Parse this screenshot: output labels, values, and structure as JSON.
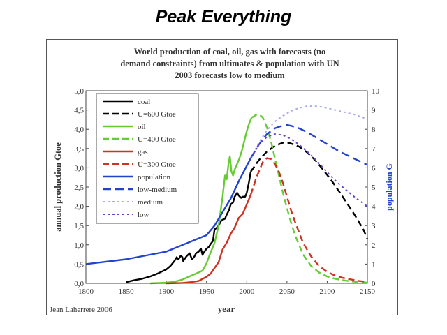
{
  "slide": {
    "title": "Peak Everything"
  },
  "chart_data": {
    "type": "line",
    "title_lines": [
      "World production of coal, oil, gas with forecasts (no",
      "demand constraints) from ultimates & population with UN",
      "2003 forecasts low to medium"
    ],
    "xlabel": "year",
    "ylabel_left": "annual production Gtoe",
    "ylabel_right": "population G",
    "xlim": [
      1800,
      2150
    ],
    "ylim_left": [
      0,
      5
    ],
    "ylim_right": [
      0,
      10
    ],
    "x_ticks": [
      "1800",
      "1850",
      "1900",
      "1950",
      "2000",
      "2050",
      "2100",
      "2150"
    ],
    "y_left_ticks": [
      "0,0",
      "0,5",
      "1,0",
      "1,5",
      "2,0",
      "2,5",
      "3,0",
      "3,5",
      "4,0",
      "4,5",
      "5,0"
    ],
    "y_right_ticks": [
      "0",
      "1",
      "2",
      "3",
      "4",
      "5",
      "6",
      "7",
      "8",
      "9",
      "10"
    ],
    "credit": "Jean Laherrere 2006",
    "legend_position": "top-left",
    "series": [
      {
        "name": "coal",
        "axis": "left",
        "color": "#000000",
        "dash": "solid",
        "x": [
          1850,
          1860,
          1870,
          1880,
          1890,
          1900,
          1905,
          1910,
          1913,
          1915,
          1918,
          1920,
          1921,
          1925,
          1929,
          1932,
          1935,
          1937,
          1940,
          1943,
          1945,
          1946,
          1950,
          1953,
          1955,
          1958,
          1960,
          1963,
          1965,
          1968,
          1970,
          1973,
          1975,
          1978,
          1980,
          1983,
          1985,
          1988,
          1990,
          1993,
          1995,
          1998,
          2000,
          2003,
          2005
        ],
        "y": [
          0.03,
          0.08,
          0.12,
          0.18,
          0.26,
          0.36,
          0.45,
          0.58,
          0.68,
          0.62,
          0.72,
          0.68,
          0.58,
          0.7,
          0.78,
          0.62,
          0.7,
          0.78,
          0.82,
          0.9,
          0.74,
          0.78,
          0.9,
          0.95,
          1.02,
          1.1,
          1.4,
          1.45,
          1.5,
          1.62,
          1.65,
          1.68,
          1.78,
          1.9,
          2.05,
          2.1,
          2.25,
          2.35,
          2.28,
          2.22,
          2.25,
          2.25,
          2.35,
          2.65,
          2.9
        ]
      },
      {
        "name": "U=600 Gtoe",
        "axis": "left",
        "color": "#000000",
        "dash": "dashed",
        "x": [
          2005,
          2015,
          2025,
          2035,
          2045,
          2050,
          2055,
          2065,
          2075,
          2085,
          2095,
          2105,
          2115,
          2125,
          2135,
          2145,
          2150
        ],
        "y": [
          2.9,
          3.2,
          3.42,
          3.57,
          3.65,
          3.66,
          3.63,
          3.55,
          3.4,
          3.2,
          2.95,
          2.68,
          2.38,
          2.07,
          1.75,
          1.4,
          1.15
        ]
      },
      {
        "name": "oil",
        "axis": "left",
        "color": "#66cc33",
        "dash": "solid",
        "x": [
          1880,
          1890,
          1900,
          1910,
          1920,
          1930,
          1940,
          1945,
          1950,
          1955,
          1960,
          1965,
          1970,
          1973,
          1975,
          1977,
          1979,
          1981,
          1983,
          1985,
          1988,
          1991,
          1994,
          1997,
          2000,
          2003,
          2006
        ],
        "y": [
          0.0,
          0.01,
          0.02,
          0.04,
          0.1,
          0.19,
          0.28,
          0.33,
          0.52,
          0.8,
          1.05,
          1.5,
          2.25,
          2.8,
          2.7,
          3.05,
          3.3,
          2.9,
          2.8,
          2.95,
          3.1,
          3.25,
          3.45,
          3.7,
          3.95,
          4.15,
          4.3
        ]
      },
      {
        "name": "U=400 Gtoe",
        "axis": "left",
        "color": "#66cc33",
        "dash": "dashed",
        "x": [
          2006,
          2012,
          2016,
          2020,
          2025,
          2030,
          2035,
          2040,
          2045,
          2050,
          2055,
          2060,
          2070,
          2080,
          2090,
          2100,
          2110,
          2120,
          2130,
          2140,
          2150
        ],
        "y": [
          4.3,
          4.38,
          4.38,
          4.3,
          4.05,
          3.7,
          3.25,
          2.8,
          2.35,
          1.95,
          1.58,
          1.25,
          0.75,
          0.45,
          0.28,
          0.18,
          0.12,
          0.08,
          0.05,
          0.03,
          0.02
        ]
      },
      {
        "name": "gas",
        "axis": "left",
        "color": "#cc3322",
        "dash": "solid",
        "x": [
          1900,
          1920,
          1930,
          1940,
          1950,
          1955,
          1960,
          1965,
          1970,
          1975,
          1980,
          1985,
          1990,
          1995,
          2000,
          2005
        ],
        "y": [
          0.0,
          0.01,
          0.03,
          0.06,
          0.17,
          0.25,
          0.4,
          0.55,
          0.88,
          1.05,
          1.28,
          1.45,
          1.7,
          1.8,
          2.05,
          2.3
        ]
      },
      {
        "name": "U=300 Gtoe",
        "axis": "left",
        "color": "#cc3322",
        "dash": "dashed",
        "x": [
          2005,
          2012,
          2020,
          2025,
          2030,
          2035,
          2040,
          2045,
          2050,
          2055,
          2060,
          2070,
          2080,
          2090,
          2100,
          2110,
          2120,
          2130,
          2140,
          2150
        ],
        "y": [
          2.3,
          2.75,
          3.15,
          3.25,
          3.23,
          3.1,
          2.9,
          2.6,
          2.25,
          1.9,
          1.6,
          1.05,
          0.7,
          0.45,
          0.3,
          0.2,
          0.14,
          0.1,
          0.06,
          0.04
        ]
      },
      {
        "name": "population",
        "axis": "right",
        "color": "#2244cc",
        "dash": "solid",
        "x": [
          1800,
          1850,
          1900,
          1950,
          1960,
          1970,
          1980,
          1990,
          2000,
          2005
        ],
        "y": [
          1.0,
          1.25,
          1.65,
          2.5,
          3.0,
          3.7,
          4.4,
          5.3,
          6.1,
          6.5
        ]
      },
      {
        "name": "low-medium",
        "axis": "right",
        "color": "#2244cc",
        "dash": "longdash",
        "x": [
          2005,
          2015,
          2025,
          2035,
          2045,
          2050,
          2055,
          2065,
          2075,
          2085,
          2095,
          2105,
          2115,
          2125,
          2135,
          2145,
          2150
        ],
        "y": [
          6.5,
          7.2,
          7.75,
          8.05,
          8.2,
          8.22,
          8.18,
          8.05,
          7.85,
          7.6,
          7.35,
          7.1,
          6.85,
          6.65,
          6.45,
          6.25,
          6.15
        ]
      },
      {
        "name": "medium",
        "axis": "right",
        "color": "#aaaaee",
        "dash": "dotted",
        "x": [
          2005,
          2015,
          2025,
          2035,
          2045,
          2055,
          2065,
          2075,
          2085,
          2095,
          2105,
          2115,
          2125,
          2135,
          2145,
          2150
        ],
        "y": [
          6.5,
          7.3,
          7.95,
          8.4,
          8.7,
          8.95,
          9.1,
          9.2,
          9.2,
          9.15,
          9.05,
          8.95,
          8.85,
          8.75,
          8.6,
          8.5
        ]
      },
      {
        "name": "low",
        "axis": "right",
        "color": "#6644cc",
        "dash": "dotted",
        "x": [
          2005,
          2015,
          2025,
          2035,
          2045,
          2055,
          2065,
          2075,
          2085,
          2095,
          2105,
          2115,
          2125,
          2135,
          2145,
          2150
        ],
        "y": [
          6.5,
          7.2,
          7.6,
          7.75,
          7.7,
          7.5,
          7.2,
          6.85,
          6.45,
          6.0,
          5.55,
          5.15,
          4.8,
          4.45,
          4.15,
          4.0
        ]
      }
    ]
  }
}
